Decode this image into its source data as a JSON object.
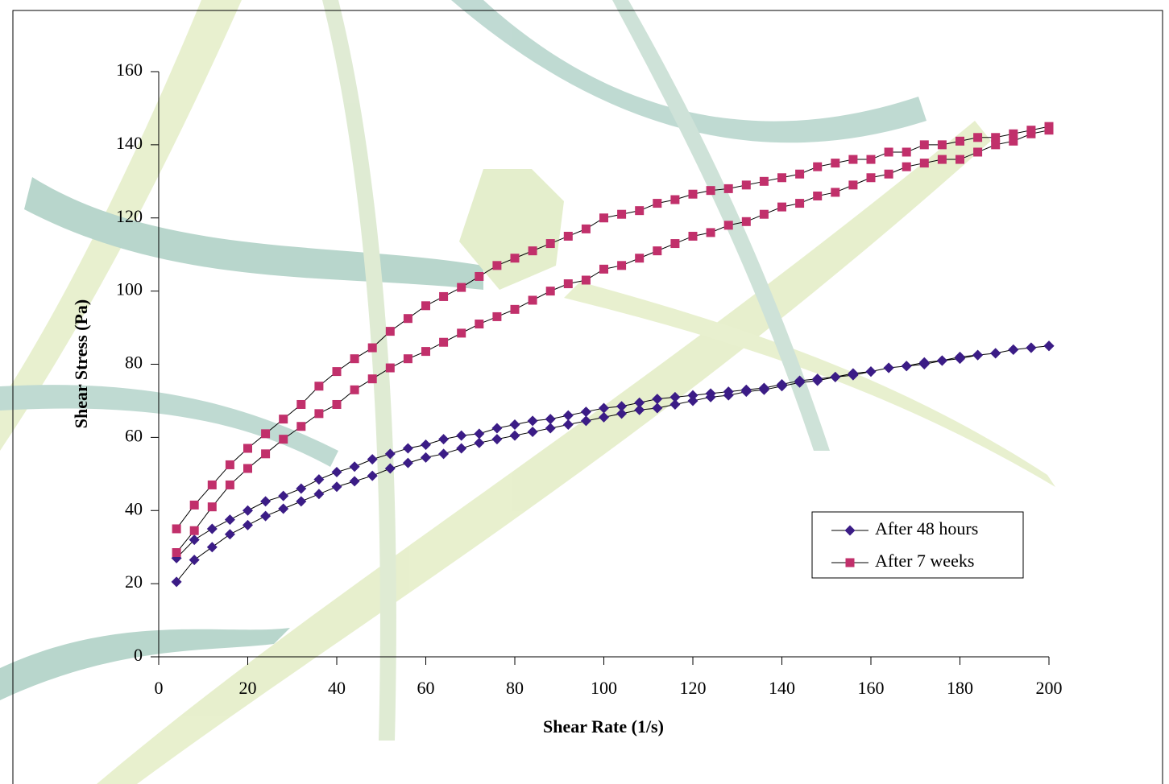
{
  "chart_data": {
    "type": "line",
    "x_label": "Shear Rate (1/s)",
    "y_label": "Shear Stress (Pa)",
    "x": [
      4,
      8,
      12,
      16,
      20,
      24,
      28,
      32,
      36,
      40,
      44,
      48,
      52,
      56,
      60,
      64,
      68,
      72,
      76,
      80,
      84,
      88,
      92,
      96,
      100,
      104,
      108,
      112,
      116,
      120,
      124,
      128,
      132,
      136,
      140,
      144,
      148,
      152,
      156,
      160,
      164,
      168,
      172,
      176,
      180,
      184,
      188,
      192,
      196,
      200,
      200,
      196,
      192,
      188,
      184,
      180,
      176,
      172,
      168,
      164,
      160,
      156,
      152,
      148,
      144,
      140,
      136,
      132,
      128,
      124,
      120,
      116,
      112,
      108,
      104,
      100,
      96,
      92,
      88,
      84,
      80,
      76,
      72,
      68,
      64,
      60,
      56,
      52,
      48,
      44,
      40,
      36,
      32,
      28,
      24,
      20,
      16,
      12,
      8,
      4
    ],
    "series": [
      {
        "name": "After 48 hours",
        "color": "#3b1c86",
        "marker": "diamond",
        "values": [
          27,
          32,
          35,
          37.5,
          40,
          42.5,
          44,
          46,
          48.5,
          50.5,
          52,
          54,
          55.5,
          57,
          58,
          59.5,
          60.5,
          61,
          62.5,
          63.5,
          64.5,
          65,
          66,
          67,
          68,
          68.5,
          69.5,
          70.5,
          71,
          71.5,
          72,
          72.5,
          73,
          73.5,
          74.5,
          75.5,
          76,
          76.5,
          77.5,
          78,
          79,
          79.5,
          80.5,
          81,
          82,
          82.5,
          83,
          84,
          84.5,
          85,
          85,
          84.5,
          84,
          83,
          82.5,
          81.5,
          81,
          80,
          79.5,
          79,
          78,
          77,
          76.5,
          75.5,
          75,
          74,
          73,
          72.5,
          71.5,
          71,
          70,
          69,
          68,
          67.5,
          66.5,
          65.5,
          64.5,
          63.5,
          62.5,
          61.5,
          60.5,
          59.5,
          58.5,
          57,
          55.5,
          54.5,
          53,
          51.5,
          49.5,
          48,
          46.5,
          44.5,
          42.5,
          40.5,
          38.5,
          36,
          33.5,
          30,
          26.5,
          20.5
        ]
      },
      {
        "name": "After 7 weeks",
        "color": "#c1306b",
        "marker": "square",
        "values": [
          35,
          41.5,
          47,
          52.5,
          57,
          61,
          65,
          69,
          74,
          78,
          81.5,
          84.5,
          89,
          92.5,
          96,
          98.5,
          101,
          104,
          107,
          109,
          111,
          113,
          115,
          117,
          120,
          121,
          122,
          124,
          125,
          126.5,
          127.5,
          128,
          129,
          130,
          131,
          132,
          134,
          135,
          136,
          136,
          138,
          138,
          140,
          140,
          141,
          142,
          142,
          143,
          144,
          145,
          144,
          143,
          141,
          140,
          138,
          136,
          136,
          135,
          134,
          132,
          131,
          129,
          127,
          126,
          124,
          123,
          121,
          119,
          118,
          116,
          115,
          113,
          111,
          109,
          107,
          106,
          103,
          102,
          100,
          97.5,
          95,
          93,
          91,
          88.5,
          86,
          83.5,
          81.5,
          79,
          76,
          73,
          69,
          66.5,
          63,
          59.5,
          55.5,
          51.5,
          47,
          41,
          34.5,
          28.5
        ]
      }
    ],
    "xlim": [
      0,
      200
    ],
    "ylim": [
      0,
      160
    ],
    "xticks": [
      0,
      20,
      40,
      60,
      80,
      100,
      120,
      140,
      160,
      180,
      200
    ],
    "yticks": [
      0,
      20,
      40,
      60,
      80,
      100,
      120,
      140,
      160
    ],
    "legend": "right"
  }
}
